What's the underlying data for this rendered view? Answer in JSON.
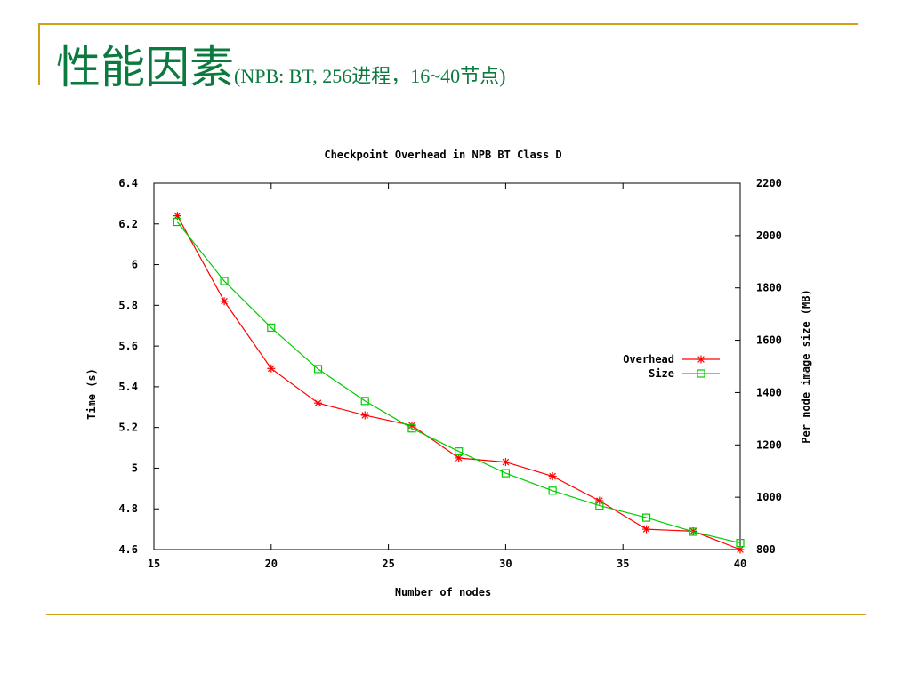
{
  "slide": {
    "title": "性能因素",
    "subtitle": "(NPB: BT,   256进程，16~40节点)"
  },
  "chart_data": {
    "type": "line",
    "title": "Checkpoint Overhead in NPB BT Class D",
    "xlabel": "Number of nodes",
    "ylabel": "Time (s)",
    "y2label": "Per node image size (MB)",
    "xlim": [
      15,
      40
    ],
    "ylim": [
      4.6,
      6.4
    ],
    "y2lim": [
      800,
      2200
    ],
    "xticks": [
      15,
      20,
      25,
      30,
      35,
      40
    ],
    "yticks": [
      "4.6",
      "4.8",
      "5",
      "5.2",
      "5.4",
      "5.6",
      "5.8",
      "6",
      "6.2",
      "6.4"
    ],
    "y2ticks": [
      800,
      1000,
      1200,
      1400,
      1600,
      1800,
      2000,
      2200
    ],
    "x": [
      16,
      18,
      20,
      22,
      24,
      26,
      28,
      30,
      32,
      34,
      36,
      38,
      40
    ],
    "legend_position": "right",
    "grid": false,
    "series": [
      {
        "name": "Overhead",
        "axis": "left",
        "color": "#ff0000",
        "marker": "star",
        "values": [
          6.24,
          5.82,
          5.49,
          5.32,
          5.26,
          5.21,
          5.05,
          5.03,
          4.96,
          4.84,
          4.7,
          4.69,
          4.6
        ]
      },
      {
        "name": "Size",
        "axis": "right",
        "color": "#00cc00",
        "marker": "square",
        "values": [
          2052,
          1826,
          1648,
          1490,
          1368,
          1263,
          1175,
          1092,
          1025,
          968,
          922,
          868,
          825
        ]
      }
    ]
  }
}
